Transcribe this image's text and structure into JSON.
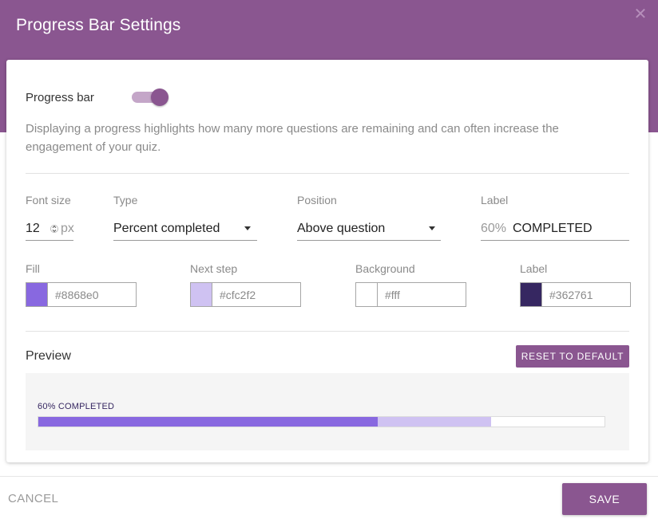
{
  "dialog": {
    "title": "Progress Bar Settings",
    "close_icon": "close-icon"
  },
  "progress_bar": {
    "label": "Progress bar",
    "enabled": true,
    "description": "Displaying a progress highlights how many more questions are remaining and can often increase the engagement of your quiz."
  },
  "fields": {
    "font_size": {
      "label": "Font size",
      "value": "12",
      "unit": "px"
    },
    "type": {
      "label": "Type",
      "value": "Percent completed"
    },
    "position": {
      "label": "Position",
      "value": "Above question"
    },
    "label": {
      "label": "Label",
      "prefix": "60%",
      "value": "COMPLETED"
    }
  },
  "colors": {
    "fill": {
      "label": "Fill",
      "value": "#8868e0",
      "swatch": "#8868e0"
    },
    "next_step": {
      "label": "Next step",
      "value": "#cfc2f2",
      "swatch": "#cfc2f2"
    },
    "background": {
      "label": "Background",
      "value": "#fff",
      "swatch": "#ffffff"
    },
    "label": {
      "label": "Label",
      "value": "#362761",
      "swatch": "#362761"
    }
  },
  "preview": {
    "title": "Preview",
    "reset_label": "RESET TO DEFAULT",
    "bar_text": "60% COMPLETED",
    "progress_fraction": 0.6,
    "next_step_fraction": 0.8
  },
  "footer": {
    "cancel_label": "CANCEL",
    "save_label": "SAVE"
  },
  "theme": {
    "accent": "#8a5690"
  }
}
